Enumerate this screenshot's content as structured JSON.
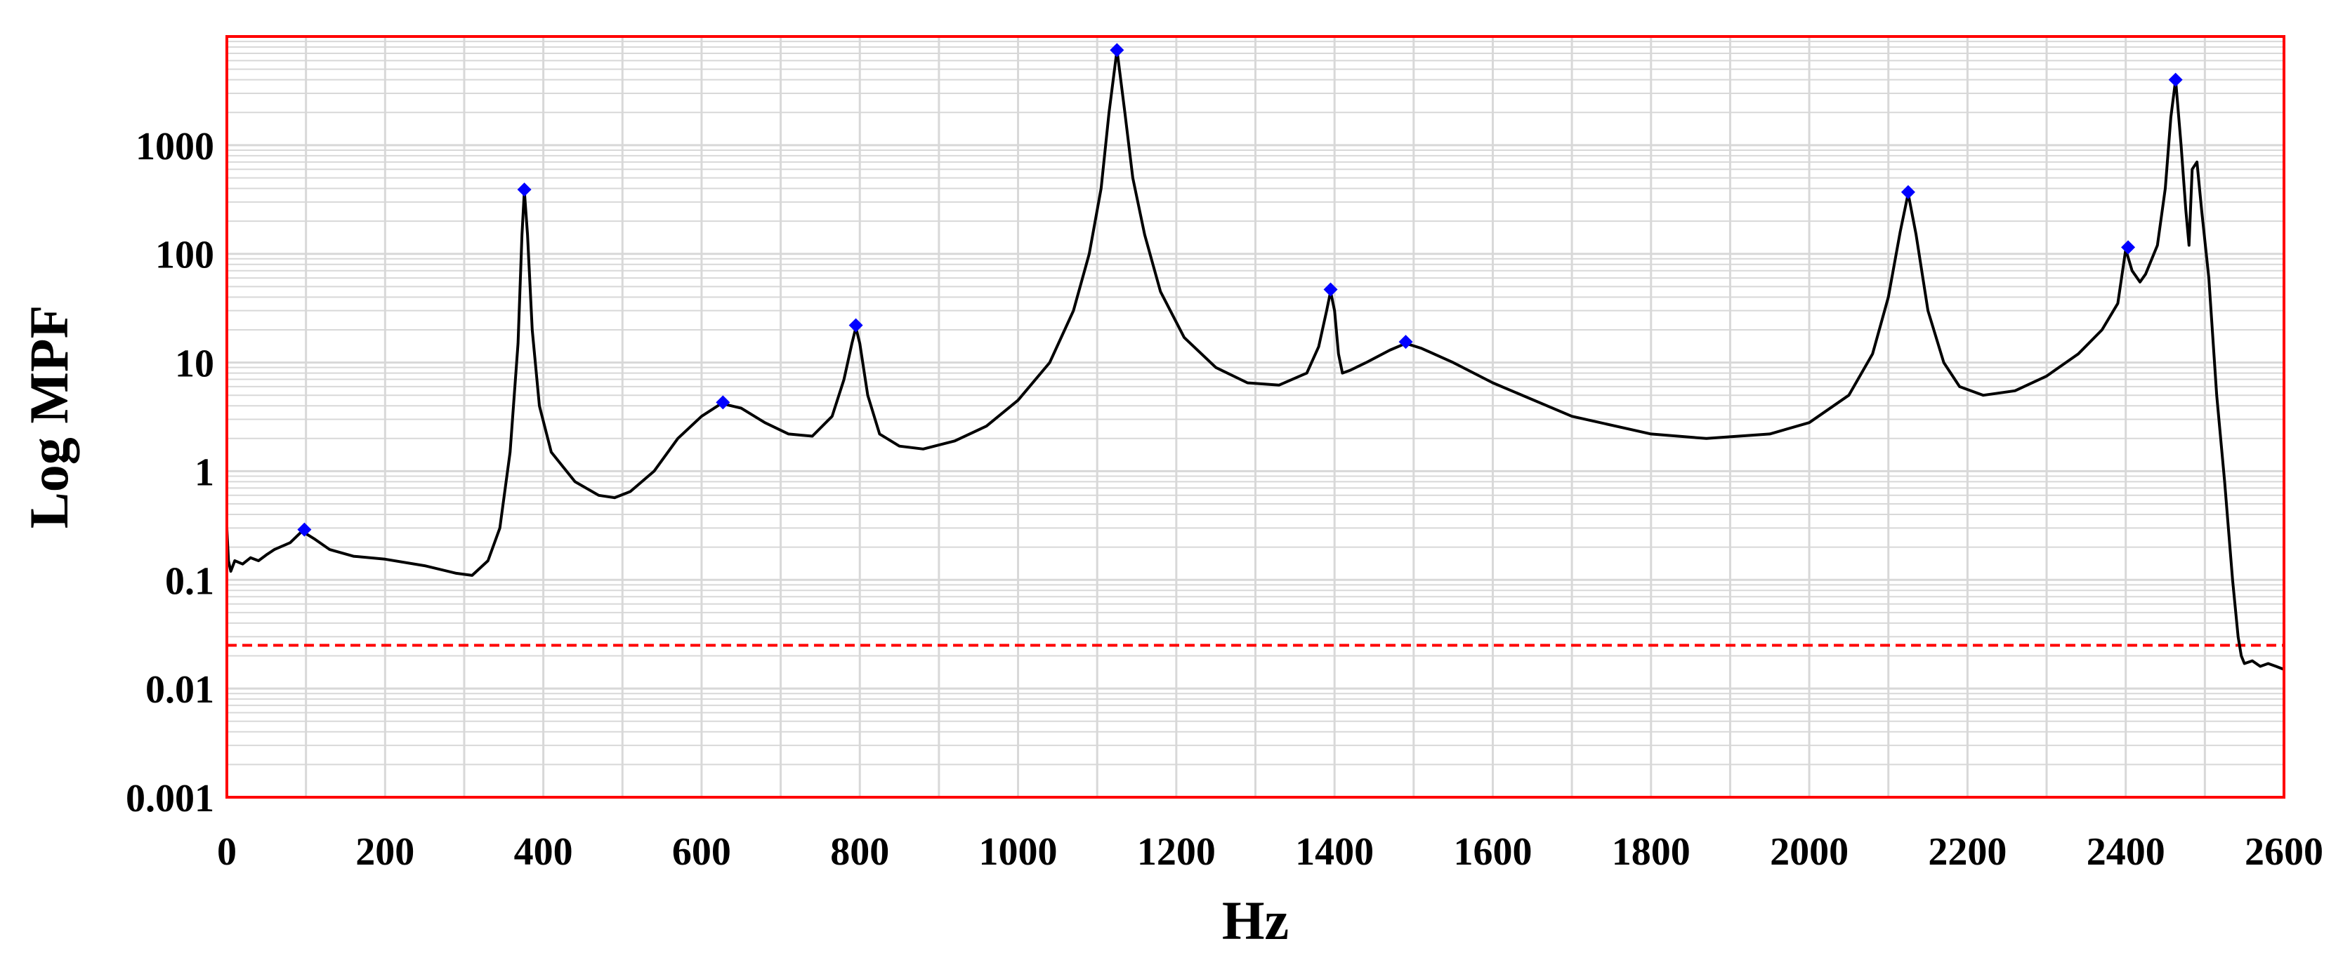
{
  "chart_data": {
    "type": "line",
    "title": "",
    "xlabel": "Hz",
    "ylabel": "Log MPF",
    "y_scale": "log",
    "xlim": [
      0,
      2600
    ],
    "ylim": [
      0.001,
      10000
    ],
    "grid": true,
    "legend": "none",
    "x_ticks": [
      {
        "value": 0,
        "label": "0"
      },
      {
        "value": 200,
        "label": "200"
      },
      {
        "value": 400,
        "label": "400"
      },
      {
        "value": 600,
        "label": "600"
      },
      {
        "value": 800,
        "label": "800"
      },
      {
        "value": 1000,
        "label": "1000"
      },
      {
        "value": 1200,
        "label": "1200"
      },
      {
        "value": 1400,
        "label": "1400"
      },
      {
        "value": 1600,
        "label": "1600"
      },
      {
        "value": 1800,
        "label": "1800"
      },
      {
        "value": 2000,
        "label": "2000"
      },
      {
        "value": 2200,
        "label": "2200"
      },
      {
        "value": 2400,
        "label": "2400"
      },
      {
        "value": 2600,
        "label": "2600"
      }
    ],
    "y_ticks": [
      {
        "value": 0.001,
        "label": "0.001"
      },
      {
        "value": 0.01,
        "label": "0.01"
      },
      {
        "value": 0.1,
        "label": "0.1"
      },
      {
        "value": 1,
        "label": "1"
      },
      {
        "value": 10,
        "label": "10"
      },
      {
        "value": 100,
        "label": "100"
      },
      {
        "value": 1000,
        "label": "1000"
      }
    ],
    "threshold": {
      "value": 0.025,
      "color": "#ff0000",
      "style": "dashed"
    },
    "colors": {
      "line": "#000000",
      "peaks": "#0000ff",
      "frame": "#ff0000",
      "grid": "#d8d8d8"
    },
    "series": [
      {
        "color": "#000000",
        "points": [
          [
            0,
            0.3
          ],
          [
            2,
            0.15
          ],
          [
            5,
            0.12
          ],
          [
            10,
            0.15
          ],
          [
            20,
            0.14
          ],
          [
            30,
            0.16
          ],
          [
            40,
            0.15
          ],
          [
            50,
            0.17
          ],
          [
            60,
            0.19
          ],
          [
            80,
            0.22
          ],
          [
            95,
            0.28
          ],
          [
            110,
            0.24
          ],
          [
            130,
            0.19
          ],
          [
            160,
            0.165
          ],
          [
            200,
            0.155
          ],
          [
            250,
            0.135
          ],
          [
            290,
            0.115
          ],
          [
            310,
            0.11
          ],
          [
            330,
            0.15
          ],
          [
            345,
            0.3
          ],
          [
            358,
            1.5
          ],
          [
            368,
            15
          ],
          [
            373,
            150
          ],
          [
            376,
            380
          ],
          [
            380,
            150
          ],
          [
            386,
            20
          ],
          [
            395,
            4
          ],
          [
            410,
            1.5
          ],
          [
            440,
            0.8
          ],
          [
            470,
            0.6
          ],
          [
            490,
            0.57
          ],
          [
            510,
            0.65
          ],
          [
            540,
            1.0
          ],
          [
            570,
            2.0
          ],
          [
            600,
            3.2
          ],
          [
            625,
            4.2
          ],
          [
            650,
            3.8
          ],
          [
            680,
            2.8
          ],
          [
            710,
            2.2
          ],
          [
            740,
            2.1
          ],
          [
            765,
            3.2
          ],
          [
            780,
            7
          ],
          [
            790,
            15
          ],
          [
            795,
            21
          ],
          [
            800,
            15
          ],
          [
            810,
            5
          ],
          [
            825,
            2.2
          ],
          [
            850,
            1.7
          ],
          [
            880,
            1.6
          ],
          [
            920,
            1.9
          ],
          [
            960,
            2.6
          ],
          [
            1000,
            4.5
          ],
          [
            1040,
            10
          ],
          [
            1070,
            30
          ],
          [
            1090,
            100
          ],
          [
            1105,
            400
          ],
          [
            1115,
            2000
          ],
          [
            1125,
            7500
          ],
          [
            1135,
            2000
          ],
          [
            1145,
            500
          ],
          [
            1160,
            150
          ],
          [
            1180,
            45
          ],
          [
            1210,
            17
          ],
          [
            1250,
            9
          ],
          [
            1290,
            6.5
          ],
          [
            1330,
            6.2
          ],
          [
            1365,
            8
          ],
          [
            1380,
            14
          ],
          [
            1390,
            30
          ],
          [
            1395,
            45
          ],
          [
            1400,
            30
          ],
          [
            1405,
            12
          ],
          [
            1410,
            8
          ],
          [
            1420,
            8.5
          ],
          [
            1440,
            10
          ],
          [
            1470,
            13
          ],
          [
            1490,
            15
          ],
          [
            1510,
            13.5
          ],
          [
            1550,
            10
          ],
          [
            1600,
            6.5
          ],
          [
            1700,
            3.2
          ],
          [
            1800,
            2.2
          ],
          [
            1870,
            2.0
          ],
          [
            1950,
            2.2
          ],
          [
            2000,
            2.8
          ],
          [
            2050,
            5
          ],
          [
            2080,
            12
          ],
          [
            2100,
            40
          ],
          [
            2115,
            160
          ],
          [
            2125,
            360
          ],
          [
            2135,
            150
          ],
          [
            2150,
            30
          ],
          [
            2170,
            10
          ],
          [
            2190,
            6
          ],
          [
            2220,
            5
          ],
          [
            2260,
            5.5
          ],
          [
            2300,
            7.5
          ],
          [
            2340,
            12
          ],
          [
            2370,
            20
          ],
          [
            2390,
            35
          ],
          [
            2400,
            110
          ],
          [
            2408,
            70
          ],
          [
            2418,
            55
          ],
          [
            2425,
            65
          ],
          [
            2440,
            120
          ],
          [
            2450,
            400
          ],
          [
            2457,
            1800
          ],
          [
            2463,
            4000
          ],
          [
            2470,
            1000
          ],
          [
            2476,
            250
          ],
          [
            2480,
            120
          ],
          [
            2484,
            600
          ],
          [
            2490,
            700
          ],
          [
            2496,
            250
          ],
          [
            2505,
            60
          ],
          [
            2515,
            5
          ],
          [
            2525,
            0.8
          ],
          [
            2535,
            0.1
          ],
          [
            2542,
            0.03
          ],
          [
            2546,
            0.02
          ],
          [
            2550,
            0.017
          ],
          [
            2560,
            0.018
          ],
          [
            2570,
            0.016
          ],
          [
            2580,
            0.017
          ],
          [
            2590,
            0.016
          ],
          [
            2600,
            0.015
          ]
        ]
      }
    ],
    "peaks": [
      [
        98,
        0.29
      ],
      [
        376,
        390
      ],
      [
        627,
        4.3
      ],
      [
        795,
        22
      ],
      [
        1125,
        7500
      ],
      [
        1395,
        47
      ],
      [
        1490,
        15.5
      ],
      [
        2125,
        370
      ],
      [
        2403,
        115
      ],
      [
        2463,
        4000
      ]
    ]
  }
}
